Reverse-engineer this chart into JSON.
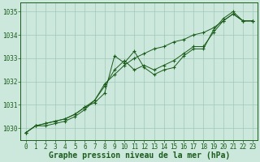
{
  "xlabel": "Graphe pression niveau de la mer (hPa)",
  "xlim": [
    -0.5,
    23.5
  ],
  "ylim": [
    1029.5,
    1035.4
  ],
  "yticks": [
    1030,
    1031,
    1032,
    1033,
    1034,
    1035
  ],
  "xticks": [
    0,
    1,
    2,
    3,
    4,
    5,
    6,
    7,
    8,
    9,
    10,
    11,
    12,
    13,
    14,
    15,
    16,
    17,
    18,
    19,
    20,
    21,
    22,
    23
  ],
  "bg_color": "#cce8dc",
  "grid_color": "#a0c8b8",
  "line_color": "#1a5c1a",
  "series1": {
    "x": [
      0,
      1,
      2,
      3,
      4,
      5,
      6,
      7,
      8,
      9,
      10,
      11,
      12,
      13,
      14,
      15,
      16,
      17,
      18,
      19,
      20,
      21,
      22,
      23
    ],
    "y": [
      1029.8,
      1030.1,
      1030.2,
      1030.3,
      1030.4,
      1030.6,
      1030.9,
      1031.1,
      1031.5,
      1033.1,
      1032.8,
      1033.3,
      1032.6,
      1032.3,
      1032.5,
      1032.6,
      1033.1,
      1033.4,
      1033.4,
      1034.2,
      1034.7,
      1035.0,
      1034.6,
      1034.6
    ]
  },
  "series2": {
    "x": [
      0,
      1,
      2,
      3,
      4,
      5,
      6,
      7,
      8,
      9,
      10,
      11,
      12,
      13,
      14,
      15,
      16,
      17,
      18,
      19,
      20,
      21,
      22,
      23
    ],
    "y": [
      1029.8,
      1030.1,
      1030.2,
      1030.3,
      1030.4,
      1030.6,
      1030.9,
      1031.2,
      1031.8,
      1032.5,
      1032.9,
      1032.5,
      1032.7,
      1032.5,
      1032.7,
      1032.9,
      1033.2,
      1033.5,
      1033.5,
      1034.1,
      1034.6,
      1034.9,
      1034.6,
      1034.6
    ]
  },
  "series3": {
    "x": [
      0,
      1,
      2,
      3,
      4,
      5,
      6,
      7,
      8,
      9,
      10,
      11,
      12,
      13,
      14,
      15,
      16,
      17,
      18,
      19,
      20,
      21,
      22,
      23
    ],
    "y": [
      1029.8,
      1030.1,
      1030.1,
      1030.2,
      1030.3,
      1030.5,
      1030.8,
      1031.2,
      1031.9,
      1032.3,
      1032.7,
      1033.0,
      1033.2,
      1033.4,
      1033.5,
      1033.7,
      1033.8,
      1034.0,
      1034.1,
      1034.3,
      1034.6,
      1034.9,
      1034.6,
      1034.6
    ]
  },
  "font_name": "monospace",
  "tick_fontsize": 5.5,
  "label_fontsize": 7.0
}
